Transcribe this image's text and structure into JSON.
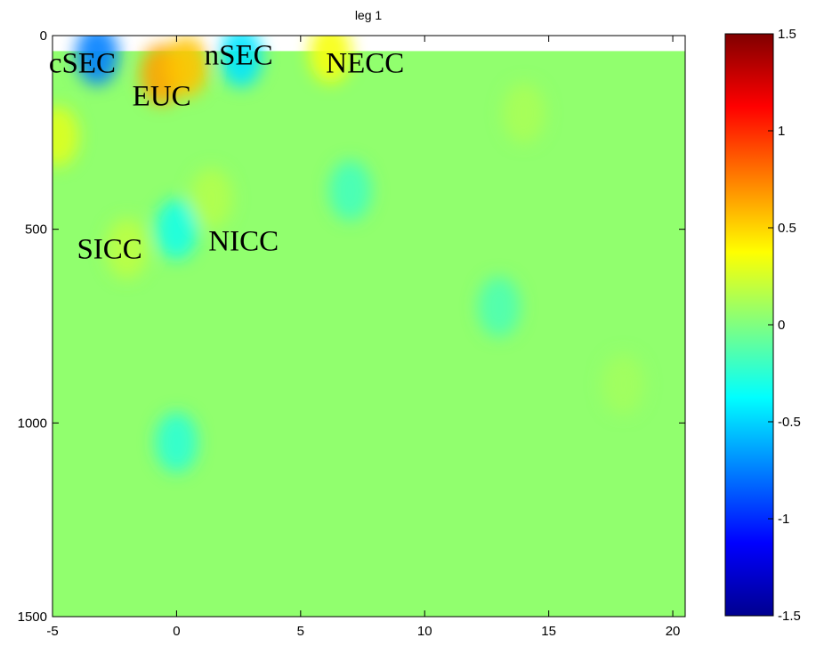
{
  "chart_data": {
    "type": "heatmap",
    "title": "leg 1",
    "xlabel": "",
    "ylabel": "",
    "xlim": [
      -5,
      20.5
    ],
    "ylim": [
      1500,
      0
    ],
    "y_reversed": true,
    "clim": [
      -1.5,
      1.5
    ],
    "colormap": "jet",
    "x_ticks": [
      -5,
      0,
      5,
      10,
      15,
      20
    ],
    "y_ticks": [
      0,
      500,
      1000,
      1500
    ],
    "colorbar_ticks": [
      1.5,
      1,
      0.5,
      0,
      -0.5,
      -1,
      -1.5
    ],
    "data_top_depth": 40,
    "annotations": [
      {
        "text": "cSEC",
        "x": -3.8,
        "y": 95
      },
      {
        "text": "EUC",
        "x": -0.6,
        "y": 180
      },
      {
        "text": "nSEC",
        "x": 2.5,
        "y": 75
      },
      {
        "text": "NECC",
        "x": 7.6,
        "y": 95
      },
      {
        "text": "SICC",
        "x": -2.7,
        "y": 575
      },
      {
        "text": "NICC",
        "x": 2.7,
        "y": 555
      }
    ],
    "features": [
      {
        "x": -3.2,
        "y": 50,
        "value": -0.75
      },
      {
        "x": -0.6,
        "y": 100,
        "value": 0.65
      },
      {
        "x": 0.4,
        "y": 80,
        "value": 0.55
      },
      {
        "x": 2.6,
        "y": 55,
        "value": -0.45
      },
      {
        "x": -4.8,
        "y": 260,
        "value": 0.28
      },
      {
        "x": 6.2,
        "y": 45,
        "value": 0.35
      },
      {
        "x": 0.0,
        "y": 500,
        "value": -0.3
      },
      {
        "x": 0.0,
        "y": 1050,
        "value": -0.25
      },
      {
        "x": -2.0,
        "y": 550,
        "value": 0.18
      },
      {
        "x": 1.4,
        "y": 420,
        "value": 0.15
      },
      {
        "x": 7.0,
        "y": 400,
        "value": -0.18
      },
      {
        "x": 14.0,
        "y": 200,
        "value": 0.12
      },
      {
        "x": 13.0,
        "y": 700,
        "value": -0.15
      },
      {
        "x": 18.0,
        "y": 900,
        "value": 0.1
      }
    ]
  }
}
